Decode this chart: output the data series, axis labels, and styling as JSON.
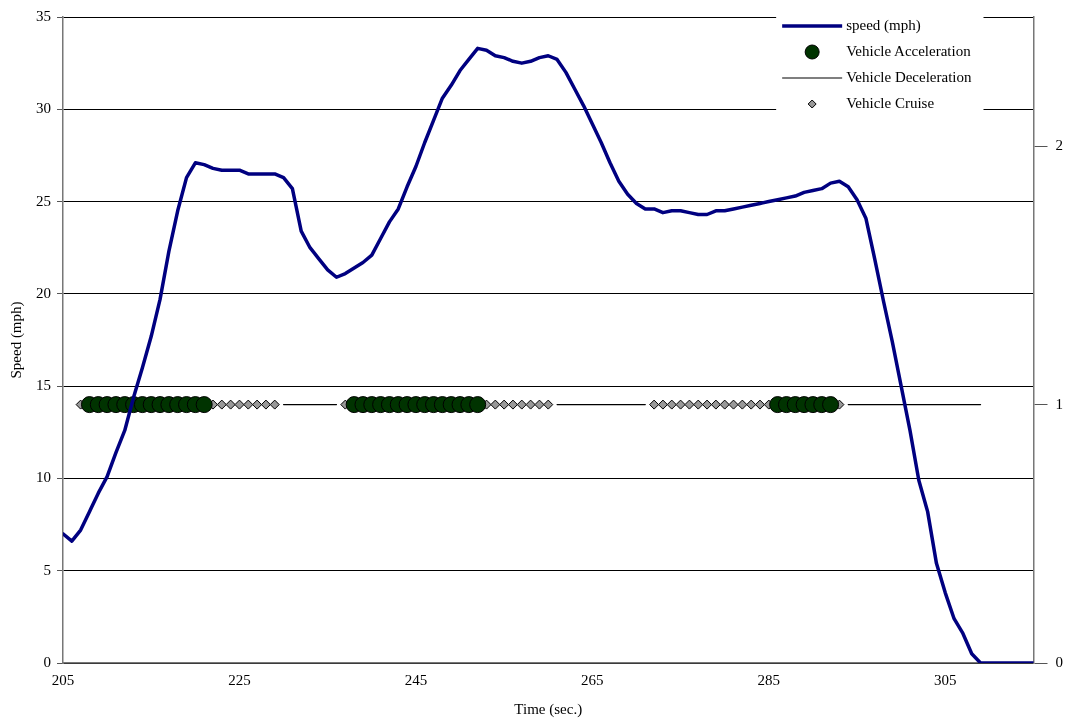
{
  "chart_data": {
    "type": "line",
    "xlabel": "Time (sec.)",
    "ylabel": "Speed (mph)",
    "x": [
      205,
      206,
      207,
      208,
      209,
      210,
      211,
      212,
      213,
      214,
      215,
      216,
      217,
      218,
      219,
      220,
      221,
      222,
      223,
      224,
      225,
      226,
      227,
      228,
      229,
      230,
      231,
      232,
      233,
      234,
      235,
      236,
      237,
      238,
      239,
      240,
      241,
      242,
      243,
      244,
      245,
      246,
      247,
      248,
      249,
      250,
      251,
      252,
      253,
      254,
      255,
      256,
      257,
      258,
      259,
      260,
      261,
      262,
      263,
      264,
      265,
      266,
      267,
      268,
      269,
      270,
      271,
      272,
      273,
      274,
      275,
      276,
      277,
      278,
      279,
      280,
      281,
      282,
      283,
      284,
      285,
      286,
      287,
      288,
      289,
      290,
      291,
      292,
      293,
      294,
      295,
      296,
      297,
      298,
      299,
      300,
      301,
      302,
      303,
      304,
      305,
      306,
      307,
      308,
      309,
      310,
      311,
      312,
      313,
      314,
      315
    ],
    "series": [
      {
        "name": "speed (mph)",
        "color": "#000080",
        "marker": "none",
        "values": [
          7.0,
          6.6,
          7.2,
          8.2,
          9.2,
          10.1,
          11.4,
          12.6,
          14.4,
          16.0,
          17.7,
          19.7,
          22.3,
          24.5,
          26.3,
          27.1,
          27.0,
          26.8,
          26.7,
          26.7,
          26.7,
          26.5,
          26.5,
          26.5,
          26.5,
          26.3,
          25.7,
          23.4,
          22.5,
          21.9,
          21.3,
          20.9,
          21.1,
          21.4,
          21.7,
          22.1,
          23.0,
          23.9,
          24.6,
          25.8,
          26.9,
          28.2,
          29.4,
          30.6,
          31.3,
          32.1,
          32.7,
          33.3,
          33.2,
          32.9,
          32.8,
          32.6,
          32.5,
          32.6,
          32.8,
          32.9,
          32.7,
          32.0,
          31.1,
          30.2,
          29.2,
          28.2,
          27.1,
          26.1,
          25.4,
          24.9,
          24.6,
          24.6,
          24.4,
          24.5,
          24.5,
          24.4,
          24.3,
          24.3,
          24.5,
          24.5,
          24.6,
          24.7,
          24.8,
          24.9,
          25.0,
          25.1,
          25.2,
          25.3,
          25.5,
          25.6,
          25.7,
          26.0,
          26.1,
          25.8,
          25.1,
          24.1,
          21.9,
          19.6,
          17.4,
          15.0,
          12.6,
          9.9,
          8.2,
          5.4,
          3.8,
          2.4,
          1.6,
          0.5,
          0,
          0,
          0,
          0,
          0,
          0,
          0
        ]
      },
      {
        "name": "Vehicle Acceleration",
        "type": "scatter",
        "color": "#003300",
        "marker": "circle",
        "axis": "y2",
        "values": [
          null,
          null,
          null,
          1,
          1,
          1,
          1,
          1,
          1,
          1,
          1,
          1,
          1,
          1,
          1,
          1,
          1,
          null,
          null,
          null,
          null,
          null,
          null,
          null,
          null,
          null,
          null,
          null,
          null,
          null,
          null,
          null,
          null,
          1,
          1,
          1,
          1,
          1,
          1,
          1,
          1,
          1,
          1,
          1,
          1,
          1,
          1,
          1,
          null,
          null,
          null,
          null,
          null,
          null,
          null,
          null,
          null,
          null,
          null,
          null,
          null,
          null,
          null,
          null,
          null,
          null,
          null,
          null,
          null,
          null,
          null,
          null,
          null,
          null,
          null,
          null,
          null,
          null,
          null,
          null,
          null,
          1,
          1,
          1,
          1,
          1,
          1,
          1,
          null,
          null,
          null,
          null,
          null,
          null,
          null,
          null,
          null,
          null,
          null,
          null,
          null,
          null,
          null,
          null,
          null,
          null,
          null,
          null,
          null,
          null,
          null
        ]
      },
      {
        "name": "Vehicle Deceleration",
        "color": "#000000",
        "marker": "none",
        "axis": "y2",
        "values": [
          null,
          null,
          null,
          null,
          null,
          null,
          null,
          null,
          null,
          null,
          null,
          null,
          null,
          null,
          null,
          null,
          null,
          null,
          null,
          null,
          null,
          null,
          null,
          null,
          null,
          1,
          1,
          1,
          1,
          1,
          1,
          1,
          null,
          null,
          null,
          null,
          null,
          null,
          null,
          null,
          null,
          null,
          null,
          null,
          null,
          null,
          null,
          null,
          null,
          null,
          null,
          null,
          null,
          null,
          null,
          null,
          1,
          1,
          1,
          1,
          1,
          1,
          1,
          1,
          1,
          1,
          1,
          null,
          null,
          null,
          null,
          null,
          null,
          null,
          null,
          null,
          null,
          null,
          null,
          null,
          null,
          null,
          null,
          null,
          null,
          null,
          null,
          null,
          null,
          1,
          1,
          1,
          1,
          1,
          1,
          1,
          1,
          1,
          1,
          1,
          1,
          1,
          1,
          1,
          1,
          null,
          null,
          null,
          null,
          null,
          null
        ]
      },
      {
        "name": "Vehicle Cruise",
        "type": "scatter",
        "color": "#999999",
        "marker": "diamond",
        "axis": "y2",
        "values": [
          null,
          null,
          1,
          null,
          null,
          null,
          null,
          null,
          null,
          null,
          null,
          null,
          null,
          null,
          null,
          null,
          null,
          1,
          1,
          1,
          1,
          1,
          1,
          1,
          1,
          null,
          null,
          null,
          null,
          null,
          null,
          null,
          1,
          null,
          null,
          null,
          null,
          null,
          null,
          null,
          null,
          null,
          null,
          null,
          null,
          null,
          null,
          null,
          1,
          1,
          1,
          1,
          1,
          1,
          1,
          1,
          null,
          null,
          null,
          null,
          null,
          null,
          null,
          null,
          null,
          null,
          null,
          1,
          1,
          1,
          1,
          1,
          1,
          1,
          1,
          1,
          1,
          1,
          1,
          1,
          1,
          null,
          null,
          null,
          null,
          null,
          null,
          null,
          1,
          null,
          null,
          null,
          null,
          null,
          null,
          null,
          null,
          null,
          null,
          null,
          null,
          null,
          null,
          null,
          null,
          null,
          null,
          null,
          null,
          null,
          null
        ]
      }
    ],
    "xlim": [
      205,
      315
    ],
    "xticks": [
      205,
      225,
      245,
      265,
      285,
      305
    ],
    "ylim": [
      0,
      35
    ],
    "yticks": [
      0,
      5,
      10,
      15,
      20,
      25,
      30,
      35
    ],
    "y2lim": [
      0,
      2.5
    ],
    "y2ticks": [
      0,
      1,
      2
    ],
    "grid": "y",
    "legend": "top right"
  }
}
